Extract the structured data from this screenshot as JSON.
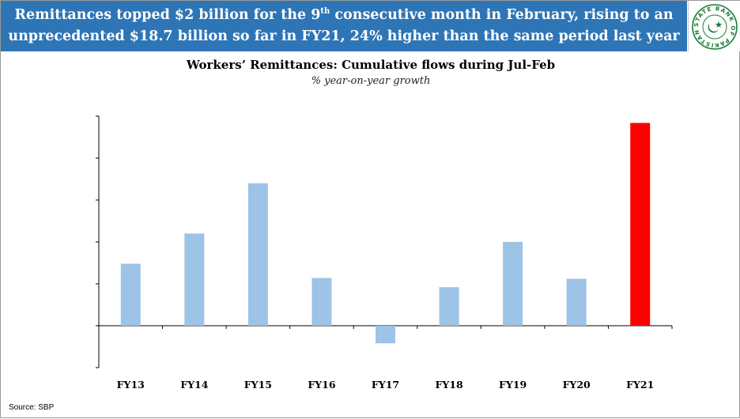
{
  "banner": {
    "line1_a": "Remittances topped $2 billion for the 9",
    "line1_sup": "th",
    "line1_b": " consecutive month in February, rising to an",
    "line2": "unprecedented $18.7 billion so far in FY21, 24% higher than the same period last year"
  },
  "logo": {
    "name": "State Bank of Pakistan seal",
    "text": "STATE BANK OF PAKISTAN",
    "color": "#1a7a3a"
  },
  "source": "Source: SBP",
  "chart_data": {
    "type": "bar",
    "title": "Workers’ Remittances: Cumulative flows during Jul-Feb",
    "subtitle": "% year-on-year growth",
    "xlabel": "",
    "ylabel": "",
    "categories": [
      "FY13",
      "FY14",
      "FY15",
      "FY16",
      "FY17",
      "FY18",
      "FY19",
      "FY20",
      "FY21"
    ],
    "values": [
      7.4,
      11.0,
      17.0,
      5.7,
      -2.1,
      4.6,
      10.0,
      5.6,
      24.2
    ],
    "ylim": [
      -5,
      25
    ],
    "yticks": [
      -5,
      0,
      5,
      10,
      15,
      20,
      25
    ],
    "ytick_labels_visible": false,
    "grid": false,
    "bar_color": "#9dc3e6",
    "highlight_color": "#ff0000",
    "highlight_category": "FY21"
  }
}
